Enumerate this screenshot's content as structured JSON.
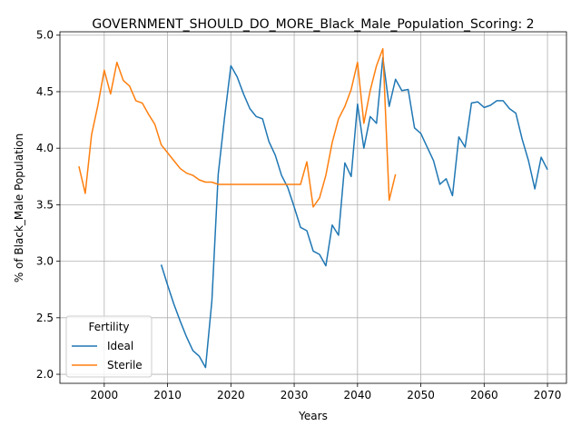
{
  "chart_data": {
    "type": "line",
    "title": "GOVERNMENT_SHOULD_DO_MORE_Black_Male_Population_Scoring: 2",
    "xlabel": "Years",
    "ylabel": "% of Black_Male Population",
    "xlim": [
      1993,
      2073
    ],
    "ylim": [
      1.92,
      5.03
    ],
    "xticks": [
      2000,
      2010,
      2020,
      2030,
      2040,
      2050,
      2060,
      2070
    ],
    "yticks": [
      2.0,
      2.5,
      3.0,
      3.5,
      4.0,
      4.5,
      5.0
    ],
    "xtick_labels": [
      "2000",
      "2010",
      "2020",
      "2030",
      "2040",
      "2050",
      "2060",
      "2070"
    ],
    "ytick_labels": [
      "2.0",
      "2.5",
      "3.0",
      "3.5",
      "4.0",
      "4.5",
      "5.0"
    ],
    "grid": true,
    "legend": {
      "title": "Fertility",
      "placement": "lower-left"
    },
    "series": [
      {
        "name": "Ideal",
        "color": "#1f77b4",
        "x": [
          2009,
          2010,
          2011,
          2012,
          2013,
          2014,
          2015,
          2016,
          2017,
          2018,
          2019,
          2020,
          2021,
          2022,
          2023,
          2024,
          2025,
          2026,
          2027,
          2028,
          2029,
          2030,
          2031,
          2032,
          2033,
          2034,
          2035,
          2036,
          2037,
          2038,
          2039,
          2040,
          2041,
          2042,
          2043,
          2044,
          2045,
          2046,
          2047,
          2048,
          2049,
          2050,
          2051,
          2052,
          2053,
          2054,
          2055,
          2056,
          2057,
          2058,
          2059,
          2060,
          2061,
          2062,
          2063,
          2064,
          2065,
          2066,
          2067,
          2068,
          2069,
          2070
        ],
        "values": [
          2.97,
          2.79,
          2.62,
          2.47,
          2.33,
          2.21,
          2.16,
          2.06,
          2.65,
          3.77,
          4.27,
          4.73,
          4.63,
          4.48,
          4.35,
          4.28,
          4.26,
          4.06,
          3.94,
          3.76,
          3.65,
          3.48,
          3.3,
          3.27,
          3.09,
          3.06,
          2.96,
          3.32,
          3.23,
          3.87,
          3.75,
          4.39,
          4.0,
          4.28,
          4.22,
          4.8,
          4.37,
          4.61,
          4.51,
          4.52,
          4.18,
          4.13,
          4.01,
          3.89,
          3.68,
          3.73,
          3.58,
          4.1,
          4.01,
          4.4,
          4.41,
          4.36,
          4.38,
          4.42,
          4.42,
          4.35,
          4.31,
          4.08,
          3.89,
          3.64,
          3.92,
          3.81
        ]
      },
      {
        "name": "Sterile",
        "color": "#ff7f0e",
        "x": [
          1996,
          1997,
          1998,
          1999,
          2000,
          2001,
          2002,
          2003,
          2004,
          2005,
          2006,
          2007,
          2008,
          2009,
          2010,
          2011,
          2012,
          2013,
          2014,
          2015,
          2016,
          2017,
          2018,
          2019,
          2020,
          2021,
          2022,
          2023,
          2024,
          2025,
          2026,
          2027,
          2028,
          2029,
          2030,
          2031,
          2032,
          2033,
          2034,
          2035,
          2036,
          2037,
          2038,
          2039,
          2040,
          2041,
          2042,
          2043,
          2044,
          2045,
          2046
        ],
        "values": [
          3.84,
          3.6,
          4.12,
          4.38,
          4.69,
          4.48,
          4.76,
          4.6,
          4.55,
          4.42,
          4.4,
          4.3,
          4.21,
          4.03,
          3.96,
          3.89,
          3.82,
          3.78,
          3.76,
          3.72,
          3.7,
          3.7,
          3.68,
          3.68,
          3.68,
          3.68,
          3.68,
          3.68,
          3.68,
          3.68,
          3.68,
          3.68,
          3.68,
          3.68,
          3.68,
          3.68,
          3.88,
          3.48,
          3.56,
          3.76,
          4.05,
          4.26,
          4.37,
          4.52,
          4.76,
          4.22,
          4.51,
          4.73,
          4.88,
          3.54,
          3.77
        ]
      }
    ]
  }
}
